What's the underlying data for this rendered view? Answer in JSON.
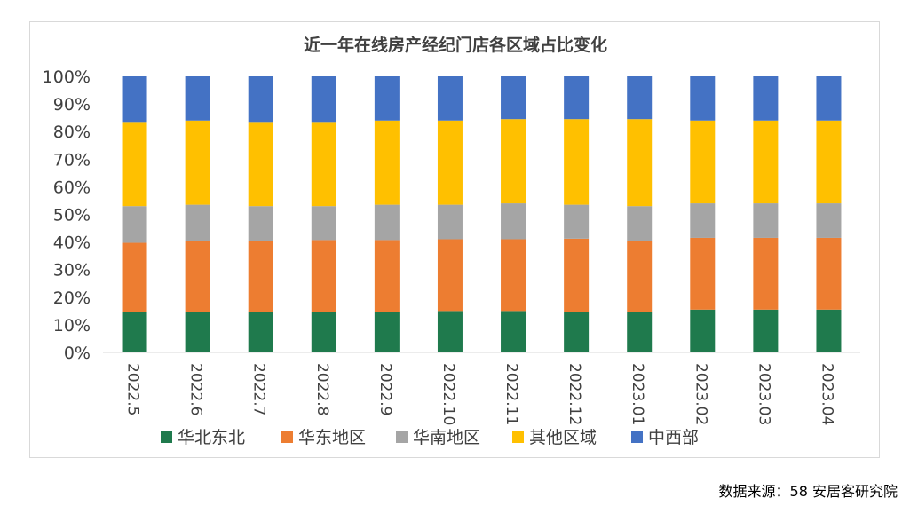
{
  "chart_data": {
    "type": "bar",
    "stacked": true,
    "title": "近一年在线房产经纪门店各区域占比变化",
    "categories": [
      "2022.5",
      "2022.6",
      "2022.7",
      "2022.8",
      "2022.9",
      "2022.10",
      "2022.11",
      "2022.12",
      "2023.01",
      "2023.02",
      "2023.03",
      "2023.04"
    ],
    "y_ticks": [
      "0%",
      "10%",
      "20%",
      "30%",
      "40%",
      "50%",
      "60%",
      "70%",
      "80%",
      "90%",
      "100%"
    ],
    "ylim": [
      0,
      100
    ],
    "series": [
      {
        "name": "华北东北",
        "color": "#1f7a4d",
        "values": [
          14.7,
          14.7,
          14.7,
          14.7,
          14.7,
          15.0,
          15.0,
          14.7,
          14.7,
          15.5,
          15.5,
          15.5
        ]
      },
      {
        "name": "华东地区",
        "color": "#ed7d31",
        "values": [
          25.0,
          25.5,
          25.5,
          26.0,
          26.0,
          26.0,
          26.0,
          26.5,
          25.5,
          26.0,
          26.0,
          26.0
        ]
      },
      {
        "name": "华南地区",
        "color": "#a5a5a5",
        "values": [
          13.3,
          13.3,
          12.8,
          12.3,
          12.8,
          12.5,
          13.0,
          12.3,
          12.8,
          12.5,
          12.5,
          12.5
        ]
      },
      {
        "name": "其他区域",
        "color": "#ffc000",
        "values": [
          30.5,
          30.5,
          30.5,
          30.5,
          30.5,
          30.5,
          30.5,
          31.0,
          31.5,
          30.0,
          30.0,
          30.0
        ]
      },
      {
        "name": "中西部",
        "color": "#4472c4",
        "values": [
          16.5,
          16.0,
          16.5,
          16.5,
          16.0,
          16.0,
          15.5,
          15.5,
          15.5,
          16.0,
          16.0,
          16.0
        ]
      }
    ],
    "legend_position": "bottom",
    "grid": false
  },
  "source_note": "数据来源：58 安居客研究院",
  "watermark": "58安居客研究院"
}
